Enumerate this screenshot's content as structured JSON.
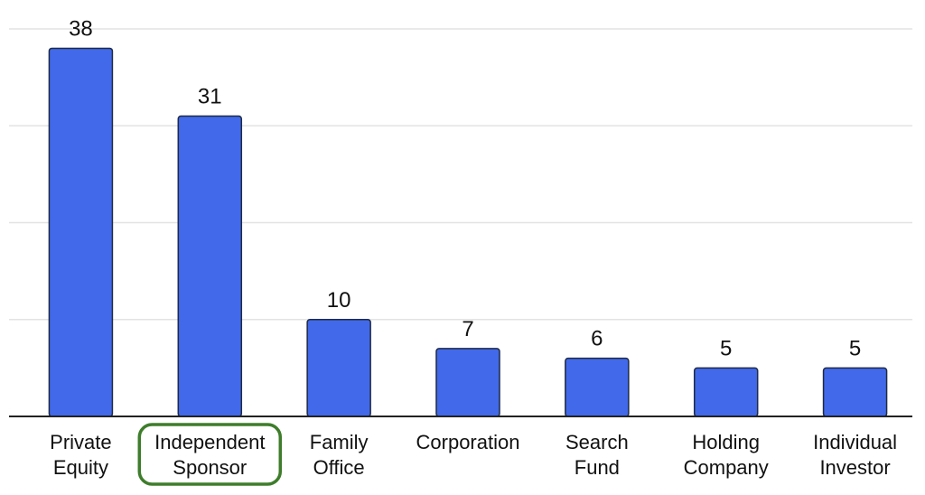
{
  "chart_data": {
    "type": "bar",
    "categories": [
      [
        "Private",
        "Equity"
      ],
      [
        "Independent",
        "Sponsor"
      ],
      [
        "Family",
        "Office"
      ],
      [
        "Corporation"
      ],
      [
        "Search",
        "Fund"
      ],
      [
        "Holding",
        "Company"
      ],
      [
        "Individual",
        "Investor"
      ]
    ],
    "values": [
      38,
      31,
      10,
      7,
      6,
      5,
      5
    ],
    "ylim": [
      0,
      40
    ],
    "grid": true,
    "highlighted_category": "Independent Sponsor",
    "colors": {
      "bar": "#4169e9",
      "highlight": "#3e7d2b"
    }
  }
}
